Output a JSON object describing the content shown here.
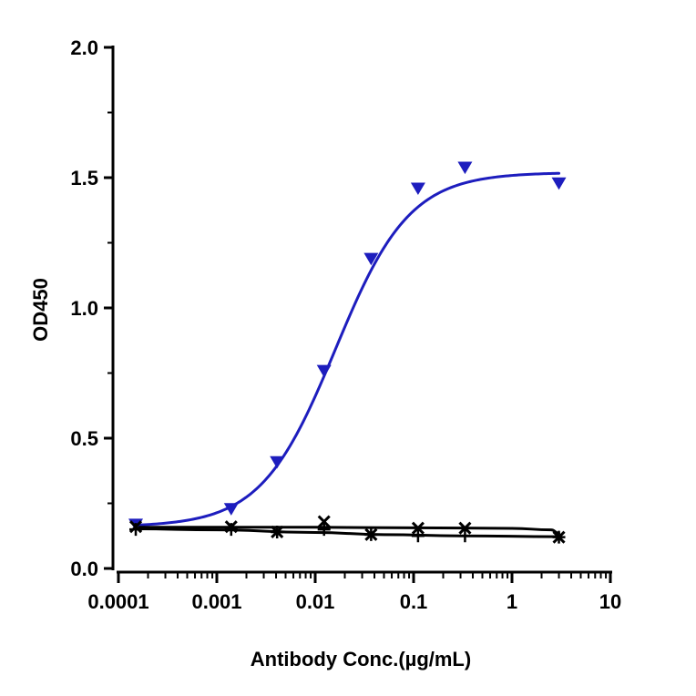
{
  "chart_data": {
    "type": "scatter",
    "title": "",
    "xlabel": "Antibody Conc.(µg/mL)",
    "ylabel": "OD450",
    "xscale": "log",
    "xlim": [
      0.0001,
      10
    ],
    "ylim": [
      0.0,
      2.0
    ],
    "x_ticks": [
      "0.0001",
      "0.001",
      "0.01",
      "0.1",
      "1",
      "10"
    ],
    "y_ticks": [
      "0.0",
      "0.5",
      "1.0",
      "1.5",
      "2.0"
    ],
    "grid": false,
    "legend": "none",
    "series": [
      {
        "marker": "triangle-down",
        "color": "#1d1dbe",
        "fit": "sigmoid",
        "fit_params": {
          "bottom": 0.16,
          "top": 1.52,
          "ec50": 0.016,
          "hill": 1.15
        },
        "x": [
          0.00015,
          0.0014,
          0.0041,
          0.0123,
          0.037,
          0.111,
          0.333,
          3.0
        ],
        "y": [
          0.17,
          0.23,
          0.41,
          0.76,
          1.19,
          1.46,
          1.54,
          1.48
        ]
      },
      {
        "marker": "x",
        "color": "#000000",
        "fit": "flat",
        "fit_points": [
          [
            0.00015,
            0.158
          ],
          [
            0.01,
            0.158
          ],
          [
            0.1,
            0.156
          ],
          [
            1,
            0.154
          ],
          [
            2.5,
            0.148
          ],
          [
            3.0,
            0.135
          ]
        ],
        "x": [
          0.00015,
          0.0014,
          0.0041,
          0.0123,
          0.037,
          0.111,
          0.333,
          3.0
        ],
        "y": [
          0.16,
          0.16,
          0.14,
          0.18,
          0.13,
          0.155,
          0.155,
          0.12
        ]
      },
      {
        "marker": "plus",
        "color": "#000000",
        "fit": "flat",
        "fit_points": [
          [
            0.00015,
            0.152
          ],
          [
            0.001,
            0.148
          ],
          [
            0.01,
            0.138
          ],
          [
            0.05,
            0.13
          ],
          [
            0.3,
            0.125
          ],
          [
            3.0,
            0.122
          ]
        ],
        "x": [
          0.00015,
          0.0014,
          0.0041,
          0.0123,
          0.037,
          0.111,
          0.333,
          3.0
        ],
        "y": [
          0.15,
          0.15,
          0.14,
          0.15,
          0.13,
          0.125,
          0.125,
          0.12
        ]
      }
    ]
  }
}
